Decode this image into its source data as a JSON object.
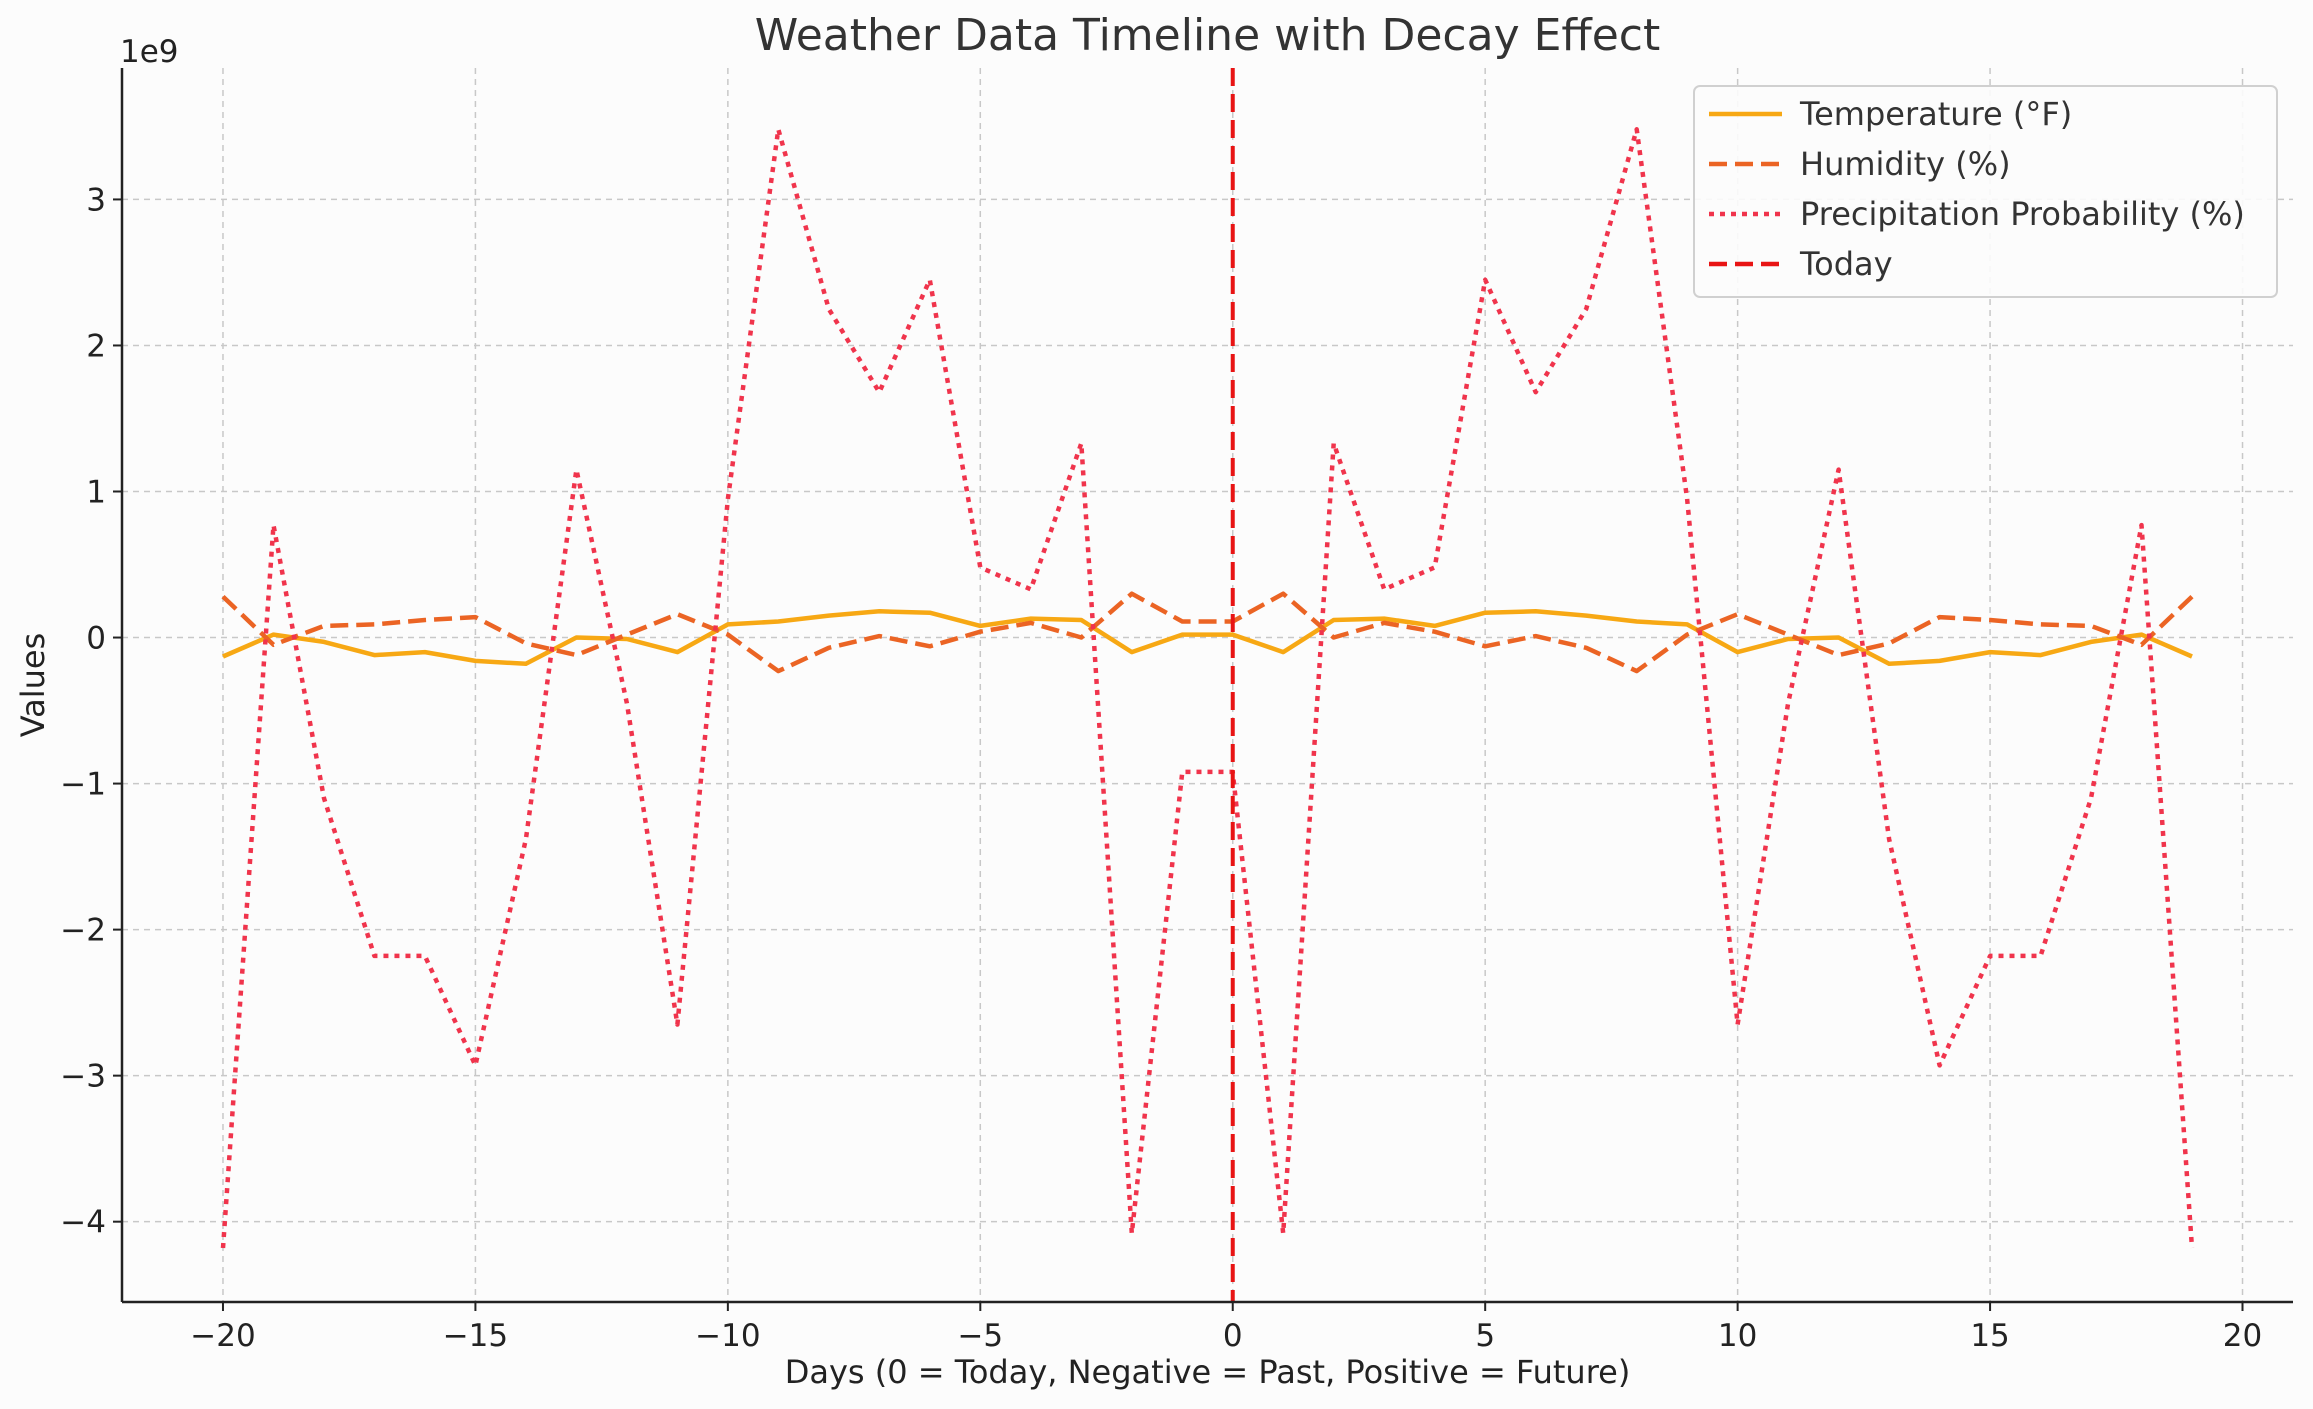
{
  "chart_data": {
    "type": "line",
    "title": "Weather Data Timeline with Decay Effect",
    "xlabel": "Days (0 = Today, Negative = Past, Positive = Future)",
    "ylabel": "Values",
    "y_offset_label": "1e9",
    "y_scale": 1000000000,
    "xlim": [
      -22,
      21
    ],
    "ylim": [
      -4.55,
      3.9
    ],
    "x_ticks": [
      -20,
      -15,
      -10,
      -5,
      0,
      5,
      10,
      15,
      20
    ],
    "x_tick_labels": [
      "−20",
      "−15",
      "−10",
      "−5",
      "0",
      "5",
      "10",
      "15",
      "20"
    ],
    "y_ticks": [
      -4,
      -3,
      -2,
      -1,
      0,
      1,
      2,
      3
    ],
    "y_tick_labels": [
      "−4",
      "−3",
      "−2",
      "−1",
      "0",
      "1",
      "2",
      "3"
    ],
    "grid": true,
    "legend_position": "top-right",
    "x": [
      -20,
      -19,
      -18,
      -17,
      -16,
      -15,
      -14,
      -13,
      -12,
      -11,
      -10,
      -9,
      -8,
      -7,
      -6,
      -5,
      -4,
      -3,
      -2,
      -1,
      0,
      1,
      2,
      3,
      4,
      5,
      6,
      7,
      8,
      9,
      10,
      11,
      12,
      13,
      14,
      15,
      16,
      17,
      18,
      19
    ],
    "series": [
      {
        "name": "Temperature (°F)",
        "color": "#f7a814",
        "style": "solid",
        "values": [
          -0.13,
          0.02,
          -0.03,
          -0.12,
          -0.1,
          -0.16,
          -0.18,
          0.0,
          -0.01,
          -0.1,
          0.09,
          0.11,
          0.15,
          0.18,
          0.17,
          0.08,
          0.13,
          0.12,
          -0.1,
          0.02,
          0.02,
          -0.1,
          0.12,
          0.13,
          0.08,
          0.17,
          0.18,
          0.15,
          0.11,
          0.09,
          -0.1,
          -0.01,
          0.0,
          -0.18,
          -0.16,
          -0.1,
          -0.12,
          -0.03,
          0.02,
          -0.13
        ]
      },
      {
        "name": "Humidity (%)",
        "color": "#eb6424",
        "style": "dashed",
        "values": [
          0.28,
          -0.05,
          0.08,
          0.09,
          0.12,
          0.14,
          -0.04,
          -0.12,
          0.02,
          0.16,
          0.02,
          -0.23,
          -0.07,
          0.01,
          -0.06,
          0.04,
          0.1,
          0.0,
          0.3,
          0.11,
          0.11,
          0.3,
          0.0,
          0.1,
          0.04,
          -0.06,
          0.01,
          -0.07,
          -0.23,
          0.02,
          0.16,
          0.02,
          -0.12,
          -0.04,
          0.14,
          0.12,
          0.09,
          0.08,
          -0.05,
          0.28
        ]
      },
      {
        "name": "Precipitation Probability (%)",
        "color": "#f0344c",
        "style": "dotted",
        "values": [
          -4.18,
          0.77,
          -1.1,
          -2.18,
          -2.18,
          -2.93,
          -1.38,
          1.15,
          -0.45,
          -2.65,
          0.95,
          3.48,
          2.25,
          1.68,
          2.45,
          0.48,
          0.33,
          1.33,
          -4.08,
          -0.92,
          -0.92,
          -4.08,
          1.33,
          0.33,
          0.48,
          2.45,
          1.68,
          2.25,
          3.48,
          0.95,
          -2.65,
          -0.45,
          1.15,
          -1.38,
          -2.93,
          -2.18,
          -2.18,
          -1.1,
          0.77,
          -4.18
        ]
      }
    ],
    "reference_line": {
      "name": "Today",
      "x": 0,
      "color": "#e81414",
      "style": "dashed"
    }
  }
}
